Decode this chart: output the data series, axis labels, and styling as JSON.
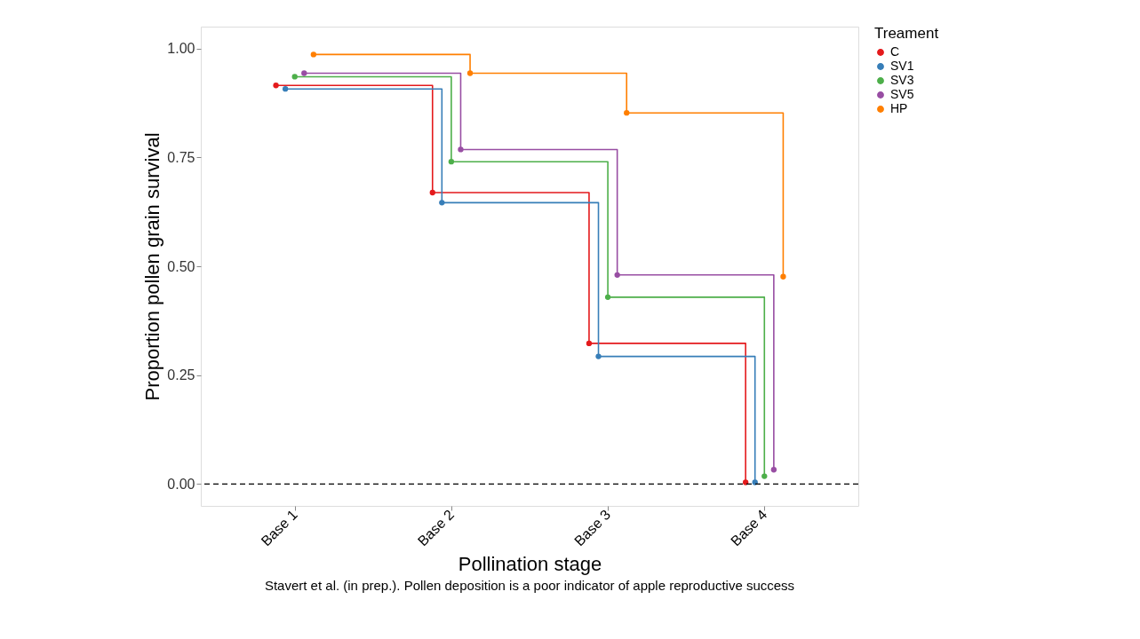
{
  "chart_data": {
    "type": "step",
    "xlabel": "Pollination stage",
    "ylabel": "Proportion pollen grain survival",
    "legend_title": "Treament",
    "categories": [
      "Base 1",
      "Base 2",
      "Base 3",
      "Base 4"
    ],
    "ylim": [
      -0.05,
      1.05
    ],
    "yticks": [
      {
        "value": 0,
        "label": "0.00"
      },
      {
        "value": 0.25,
        "label": "0.25"
      },
      {
        "value": 0.5,
        "label": "0.50"
      },
      {
        "value": 0.75,
        "label": "0.75"
      },
      {
        "value": 1,
        "label": "1.00"
      }
    ],
    "series": [
      {
        "name": "C",
        "color": "#e41a1c",
        "values": [
          0.915,
          0.669,
          0.323,
          0.004
        ]
      },
      {
        "name": "SV1",
        "color": "#377eb8",
        "values": [
          0.907,
          0.646,
          0.293,
          0.004
        ]
      },
      {
        "name": "SV3",
        "color": "#4daf4a",
        "values": [
          0.935,
          0.74,
          0.429,
          0.018
        ]
      },
      {
        "name": "SV5",
        "color": "#984ea3",
        "values": [
          0.943,
          0.768,
          0.48,
          0.033
        ]
      },
      {
        "name": "HP",
        "color": "#ff7f00",
        "values": [
          0.986,
          0.943,
          0.852,
          0.476
        ]
      }
    ],
    "ref_lines": [
      {
        "axis": "y",
        "value": 0,
        "label": null,
        "color": "#000000",
        "line_style": "dashed"
      }
    ],
    "annotations": [
      "Stavert et al. (in prep.).  Pollen deposition is a poor indicator of apple reproductive success"
    ],
    "marker": "circle",
    "line_style": "solid",
    "grid": false,
    "legend": "right"
  }
}
